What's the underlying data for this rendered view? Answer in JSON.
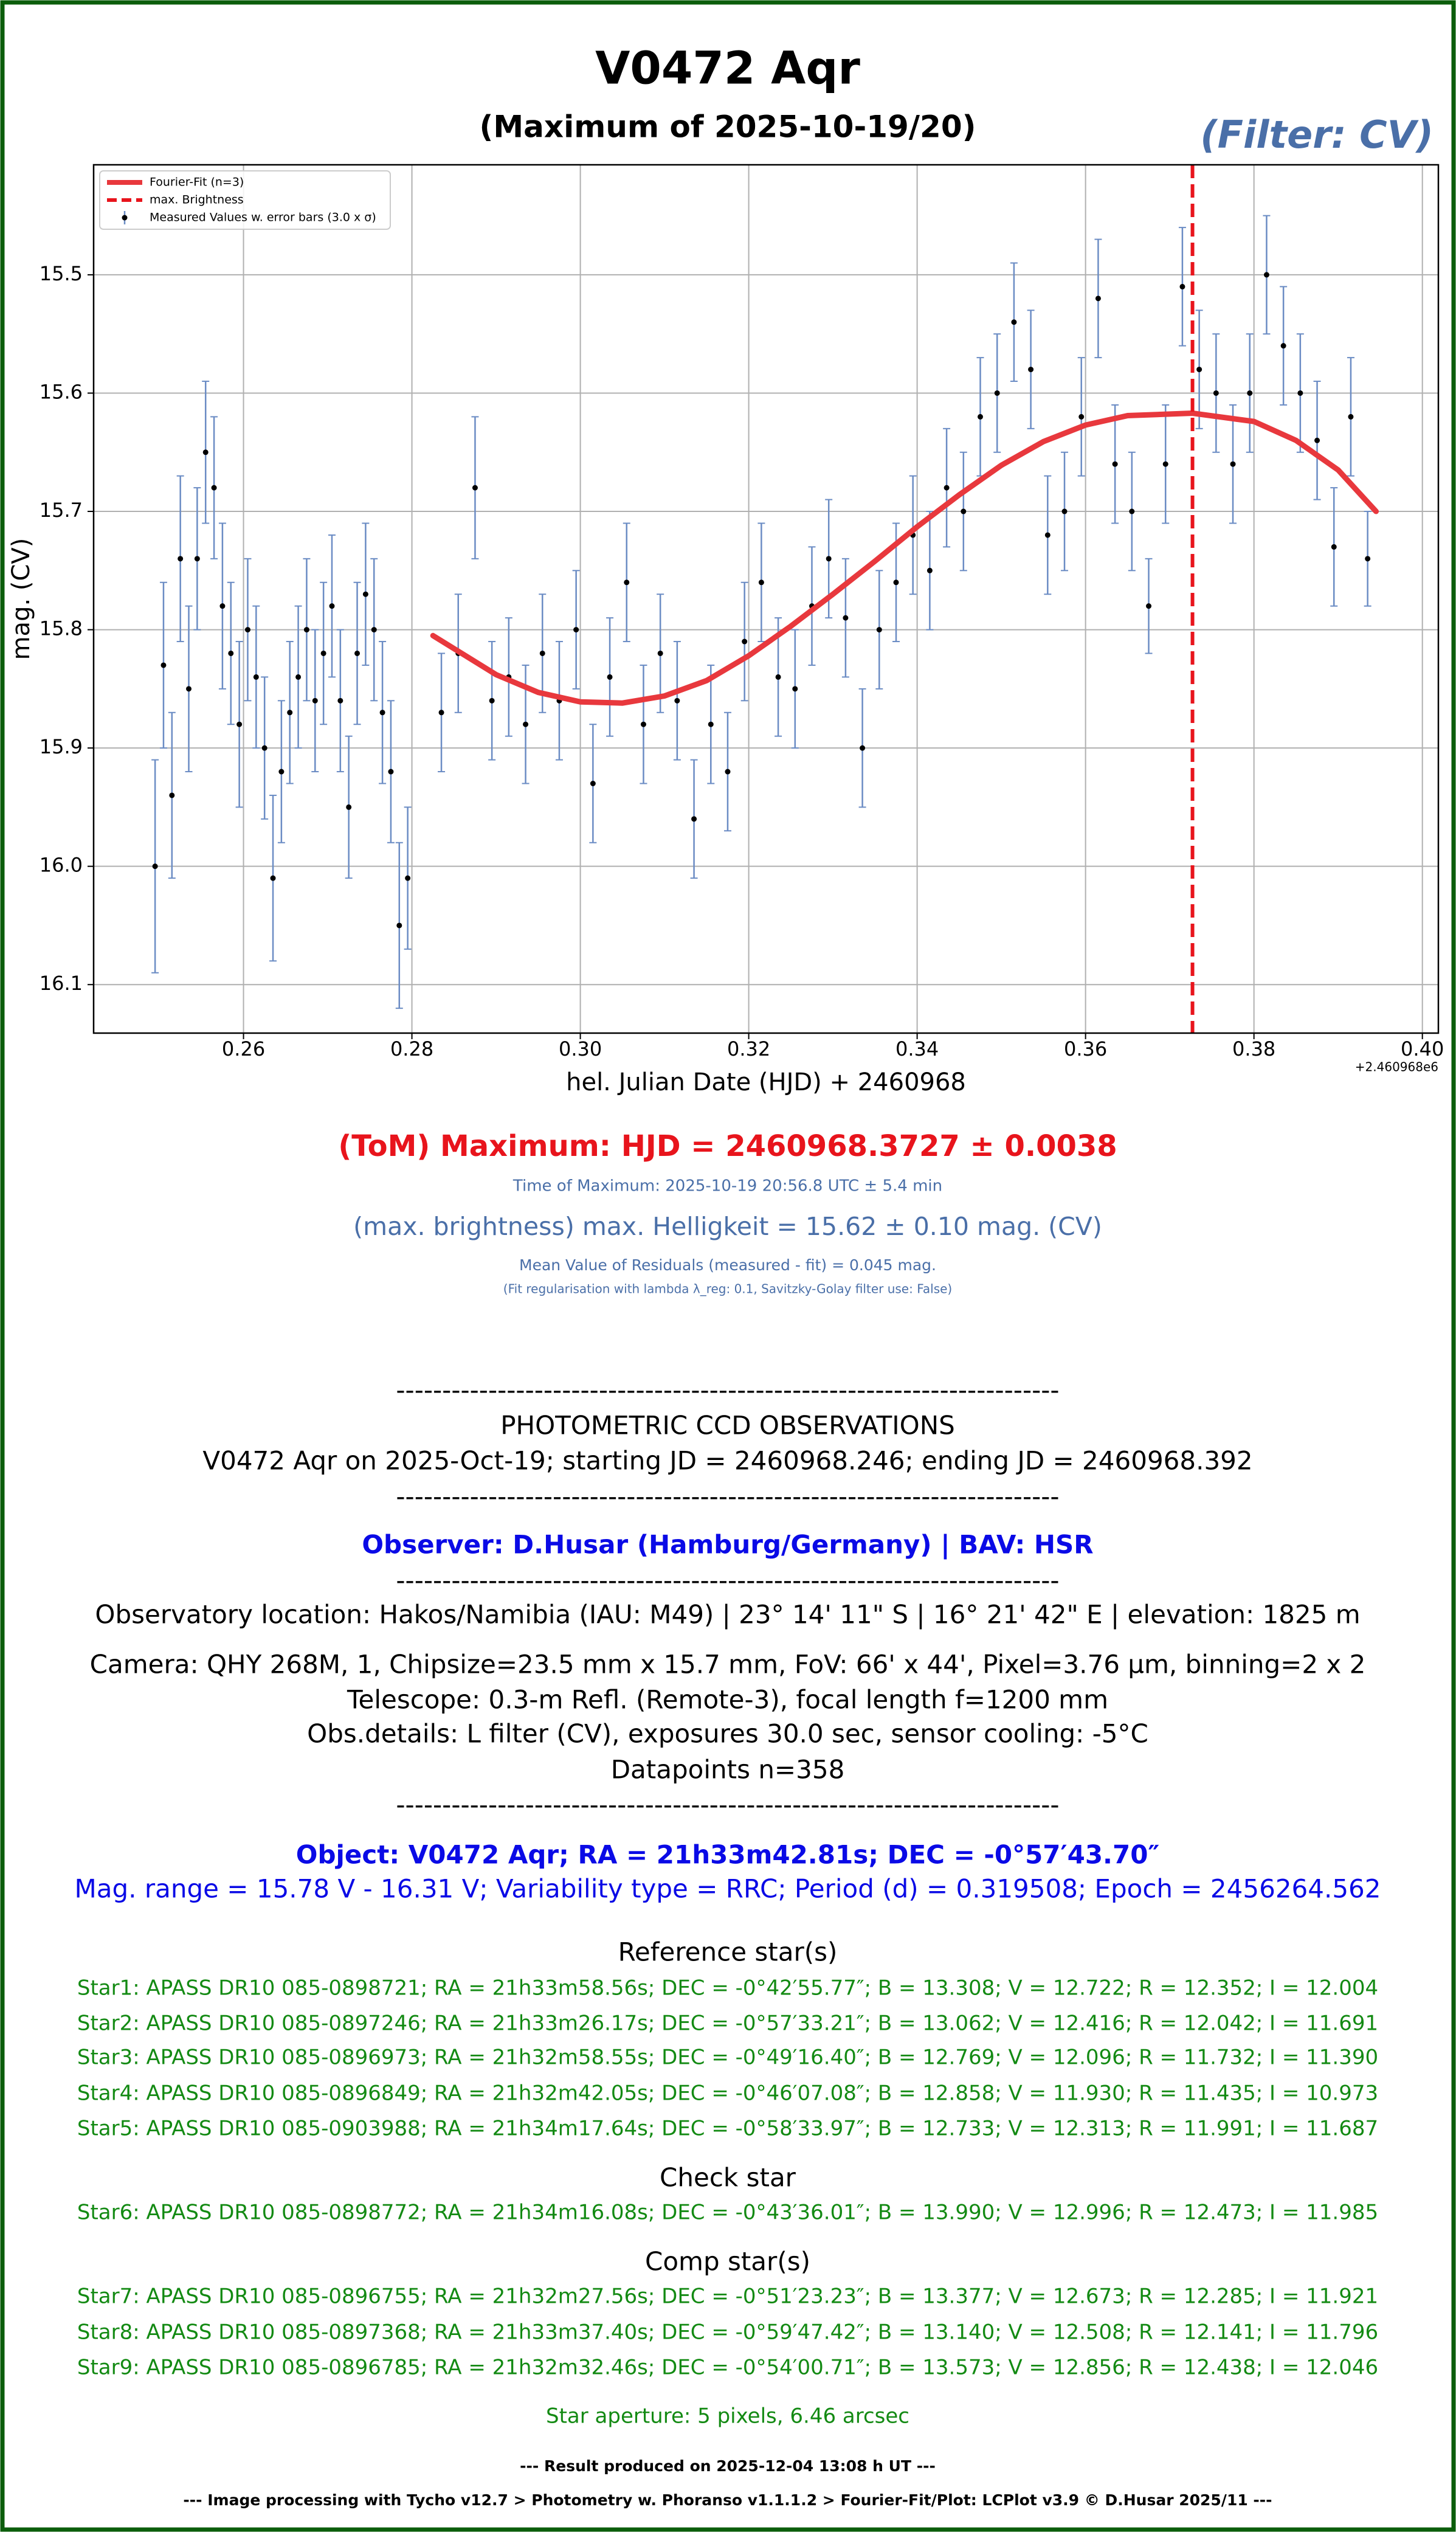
{
  "chart_data": {
    "type": "scatter",
    "title": "V0472 Aqr",
    "subtitle": "(Maximum of 2025-10-19/20)",
    "filter_label": "(Filter: CV)",
    "x_label": "hel. Julian Date (HJD) + 2460968",
    "x_offset_label": "+2.460968e6",
    "y_label": "mag. (CV)",
    "xlim": [
      0.2422,
      0.4019
    ],
    "ylim": [
      15.407,
      16.141
    ],
    "y_inverted": true,
    "xticks": [
      0.26,
      0.28,
      {
        "value": 0.3,
        "label": "0.30"
      },
      0.32,
      0.34,
      0.36,
      0.38,
      {
        "value": 0.4,
        "label": "0.40"
      }
    ],
    "yticks": [
      15.5,
      15.6,
      15.7,
      15.8,
      15.9,
      {
        "value": 16.0,
        "label": "16.0"
      },
      16.1
    ],
    "grid": true,
    "legend_location": "upper left",
    "max_line": {
      "name": "max. Brightness",
      "x": 0.3727,
      "color": "#e8141c"
    },
    "series": [
      {
        "name": "Fourier-Fit (n=3)",
        "type": "line",
        "color": "#e8383d",
        "x": [
          0.2825,
          0.29,
          0.295,
          0.3,
          0.305,
          0.31,
          0.315,
          0.32,
          0.325,
          0.33,
          0.335,
          0.34,
          0.345,
          0.35,
          0.355,
          0.36,
          0.365,
          0.3727,
          0.38,
          0.385,
          0.39,
          0.3945
        ],
        "values": [
          15.805,
          15.838,
          15.853,
          15.861,
          15.862,
          15.856,
          15.843,
          15.822,
          15.797,
          15.77,
          15.742,
          15.713,
          15.686,
          15.661,
          15.641,
          15.627,
          15.619,
          15.617,
          15.624,
          15.64,
          15.665,
          15.7
        ]
      },
      {
        "name": "Measured Values w. error bars (3.0 x σ)",
        "type": "errorbar",
        "color": "#000000",
        "error_color": "#6b8cc4",
        "x": [
          0.2495,
          0.2505,
          0.2515,
          0.2525,
          0.2535,
          0.2545,
          0.2555,
          0.2565,
          0.2575,
          0.2585,
          0.2595,
          0.2605,
          0.2615,
          0.2625,
          0.2635,
          0.2645,
          0.2655,
          0.2665,
          0.2675,
          0.2685,
          0.2695,
          0.2705,
          0.2715,
          0.2725,
          0.2735,
          0.2745,
          0.2755,
          0.2765,
          0.2775,
          0.2785,
          0.2795,
          0.2835,
          0.2855,
          0.2875,
          0.2895,
          0.2915,
          0.2935,
          0.2955,
          0.2975,
          0.2995,
          0.3015,
          0.3035,
          0.3055,
          0.3075,
          0.3095,
          0.3115,
          0.3135,
          0.3155,
          0.3175,
          0.3195,
          0.3215,
          0.3235,
          0.3255,
          0.3275,
          0.3295,
          0.3315,
          0.3335,
          0.3355,
          0.3375,
          0.3395,
          0.3415,
          0.3435,
          0.3455,
          0.3475,
          0.3495,
          0.3515,
          0.3535,
          0.3555,
          0.3575,
          0.3595,
          0.3615,
          0.3635,
          0.3655,
          0.3675,
          0.3695,
          0.3715,
          0.3735,
          0.3755,
          0.3775,
          0.3795,
          0.3815,
          0.3835,
          0.3855,
          0.3875,
          0.3895,
          0.3915,
          0.3935
        ],
        "values": [
          16.0,
          15.83,
          15.94,
          15.74,
          15.85,
          15.74,
          15.65,
          15.68,
          15.78,
          15.82,
          15.88,
          15.8,
          15.84,
          15.9,
          16.01,
          15.92,
          15.87,
          15.84,
          15.8,
          15.86,
          15.82,
          15.78,
          15.86,
          15.95,
          15.82,
          15.77,
          15.8,
          15.87,
          15.92,
          16.05,
          16.01,
          15.87,
          15.82,
          15.68,
          15.86,
          15.84,
          15.88,
          15.82,
          15.86,
          15.8,
          15.93,
          15.84,
          15.76,
          15.88,
          15.82,
          15.86,
          15.96,
          15.88,
          15.92,
          15.81,
          15.76,
          15.84,
          15.85,
          15.78,
          15.74,
          15.79,
          15.9,
          15.8,
          15.76,
          15.72,
          15.75,
          15.68,
          15.7,
          15.62,
          15.6,
          15.54,
          15.58,
          15.72,
          15.7,
          15.62,
          15.52,
          15.66,
          15.7,
          15.78,
          15.66,
          15.51,
          15.58,
          15.6,
          15.66,
          15.6,
          15.5,
          15.56,
          15.6,
          15.64,
          15.73,
          15.62,
          15.74
        ],
        "errors": [
          0.09,
          0.07,
          0.07,
          0.07,
          0.07,
          0.06,
          0.06,
          0.06,
          0.07,
          0.06,
          0.07,
          0.06,
          0.06,
          0.06,
          0.07,
          0.06,
          0.06,
          0.06,
          0.06,
          0.06,
          0.06,
          0.06,
          0.06,
          0.06,
          0.06,
          0.06,
          0.06,
          0.06,
          0.06,
          0.07,
          0.06,
          0.05,
          0.05,
          0.06,
          0.05,
          0.05,
          0.05,
          0.05,
          0.05,
          0.05,
          0.05,
          0.05,
          0.05,
          0.05,
          0.05,
          0.05,
          0.05,
          0.05,
          0.05,
          0.05,
          0.05,
          0.05,
          0.05,
          0.05,
          0.05,
          0.05,
          0.05,
          0.05,
          0.05,
          0.05,
          0.05,
          0.05,
          0.05,
          0.05,
          0.05,
          0.05,
          0.05,
          0.05,
          0.05,
          0.05,
          0.05,
          0.05,
          0.05,
          0.04,
          0.05,
          0.05,
          0.05,
          0.05,
          0.05,
          0.05,
          0.05,
          0.05,
          0.05,
          0.05,
          0.05,
          0.05,
          0.04
        ]
      }
    ]
  },
  "results": {
    "maximum": "(ToM) Maximum: HJD = 2460968.3727 ± 0.0038",
    "time_of_maximum": "Time of Maximum:   2025-10-19   20:56.8 UTC ± 5.4 min",
    "brightness": "(max. brightness) max. Helligkeit = 15.62 ± 0.10 mag. (CV)",
    "residuals": "Mean Value of Residuals (measured - fit) = 0.045 mag.",
    "regularisation": "(Fit regularisation with lambda λ_reg: 0.1, Savitzky-Golay filter use: False)"
  },
  "report": {
    "separator": "------------------------------------------------------------------------",
    "heading": "PHOTOMETRIC CCD OBSERVATIONS",
    "run": "V0472 Aqr on 2025-Oct-19; starting JD = 2460968.246; ending JD = 2460968.392",
    "observer": "Observer: D.Husar (Hamburg/Germany) | BAV: HSR",
    "location": "Observatory location: Hakos/Namibia (IAU: M49) | 23° 14' 11\" S | 16° 21' 42\" E | elevation: 1825 m",
    "camera": "Camera: QHY 268M, 1, Chipsize=23.5 mm x 15.7 mm, FoV: 66' x 44', Pixel=3.76 µm, binning=2 x 2",
    "telescope": "Telescope: 0.3-m Refl. (Remote-3), focal length f=1200 mm",
    "details": "Obs.details: L filter (CV), exposures 30.0 sec, sensor cooling: -5°C",
    "datapoints": "Datapoints n=358",
    "object": "Object: V0472 Aqr; RA = 21h33m42.81s; DEC = -0°57′43.70″",
    "mag_range": "Mag. range = 15.78 V - 16.31 V; Variability type = RRC; Period (d) = 0.319508; Epoch = 2456264.562",
    "reference_heading": "Reference star(s)",
    "reference_stars": [
      "Star1: APASS DR10 085-0898721; RA = 21h33m58.56s; DEC = -0°42′55.77″; B = 13.308; V = 12.722; R = 12.352; I = 12.004",
      "Star2: APASS DR10 085-0897246; RA = 21h33m26.17s; DEC = -0°57′33.21″; B = 13.062; V = 12.416; R = 12.042; I = 11.691",
      "Star3: APASS DR10 085-0896973; RA = 21h32m58.55s; DEC = -0°49′16.40″; B = 12.769; V = 12.096; R = 11.732; I = 11.390",
      "Star4: APASS DR10 085-0896849; RA = 21h32m42.05s; DEC = -0°46′07.08″; B = 12.858; V = 11.930; R = 11.435; I = 10.973",
      "Star5: APASS DR10 085-0903988; RA = 21h34m17.64s; DEC = -0°58′33.97″; B = 12.733; V = 12.313; R = 11.991; I = 11.687"
    ],
    "check_heading": "Check star",
    "check_stars": [
      "Star6: APASS DR10 085-0898772; RA = 21h34m16.08s; DEC = -0°43′36.01″; B = 13.990; V = 12.996; R = 12.473; I = 11.985"
    ],
    "comp_heading": "Comp star(s)",
    "comp_stars": [
      "Star7: APASS DR10 085-0896755; RA = 21h32m27.56s; DEC = -0°51′23.23″; B = 13.377; V = 12.673; R = 12.285; I = 11.921",
      "Star8: APASS DR10 085-0897368; RA = 21h33m37.40s; DEC = -0°59′47.42″; B = 13.140; V = 12.508; R = 12.141; I = 11.796",
      "Star9: APASS DR10 085-0896785; RA = 21h32m32.46s; DEC = -0°54′00.71″; B = 13.573; V = 12.856; R = 12.438; I = 12.046"
    ],
    "aperture": "Star aperture: 5 pixels, 6.46 arcsec",
    "produced": "--- Result produced on 2025-12-04 13:08 h UT ---",
    "credits": "--- Image processing with Tycho v12.7 > Photometry w. Phoranso v1.1.1.2 > Fourier-Fit/Plot: LCPlot v3.9 © D.Husar 2025/11 ---"
  }
}
